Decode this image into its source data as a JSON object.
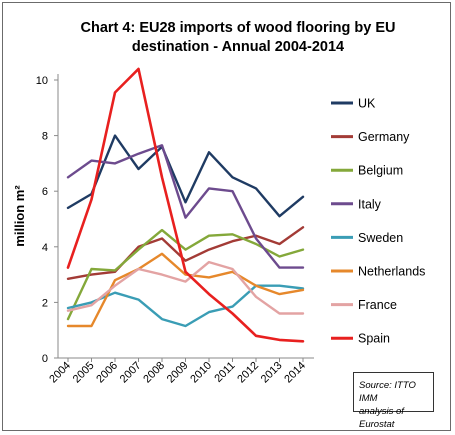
{
  "chart_data": {
    "type": "line",
    "title_lines": [
      "Chart 4: EU28 imports of wood flooring by EU",
      "destination - Annual 2004-2014"
    ],
    "ylabel": "million m²",
    "ylim": [
      0,
      10
    ],
    "yticks": [
      "0",
      "2",
      "4",
      "6",
      "8",
      "10"
    ],
    "categories": [
      "2004",
      "2005",
      "2006",
      "2007",
      "2008",
      "2009",
      "2010",
      "2011",
      "2012",
      "2013",
      "2014"
    ],
    "grid": false,
    "legend_position": "right",
    "series": [
      {
        "name": "UK",
        "color": "#1f3b63",
        "values": [
          5.4,
          5.9,
          8.0,
          6.8,
          7.6,
          5.6,
          7.4,
          6.5,
          6.1,
          5.1,
          5.8
        ]
      },
      {
        "name": "Germany",
        "color": "#a33b36",
        "values": [
          2.85,
          3.0,
          3.1,
          4.0,
          4.3,
          3.5,
          3.9,
          4.2,
          4.4,
          4.1,
          4.7
        ]
      },
      {
        "name": "Belgium",
        "color": "#84a83a",
        "values": [
          1.4,
          3.2,
          3.15,
          3.9,
          4.6,
          3.9,
          4.4,
          4.45,
          4.1,
          3.65,
          3.9
        ]
      },
      {
        "name": "Italy",
        "color": "#6d4b8e",
        "values": [
          6.5,
          7.1,
          7.0,
          7.35,
          7.65,
          5.05,
          6.1,
          6.0,
          4.3,
          3.25,
          3.25
        ]
      },
      {
        "name": "Sweden",
        "color": "#3a9db5",
        "values": [
          1.8,
          2.0,
          2.35,
          2.1,
          1.4,
          1.15,
          1.65,
          1.85,
          2.6,
          2.6,
          2.5
        ]
      },
      {
        "name": "Netherlands",
        "color": "#e6882b",
        "values": [
          1.15,
          1.15,
          2.8,
          3.2,
          3.75,
          3.0,
          2.9,
          3.1,
          2.6,
          2.3,
          2.45
        ]
      },
      {
        "name": "France",
        "color": "#e3a3a3",
        "values": [
          1.7,
          1.9,
          2.6,
          3.2,
          3.0,
          2.75,
          3.45,
          3.2,
          2.2,
          1.6,
          1.6
        ]
      },
      {
        "name": "Spain",
        "color": "#e8201f",
        "values": [
          3.25,
          5.7,
          9.55,
          10.4,
          6.5,
          3.1,
          2.3,
          1.6,
          0.8,
          0.65,
          0.6
        ]
      }
    ],
    "annotation": "Source: ITTO IMM\nanalysis of Eurostat"
  }
}
